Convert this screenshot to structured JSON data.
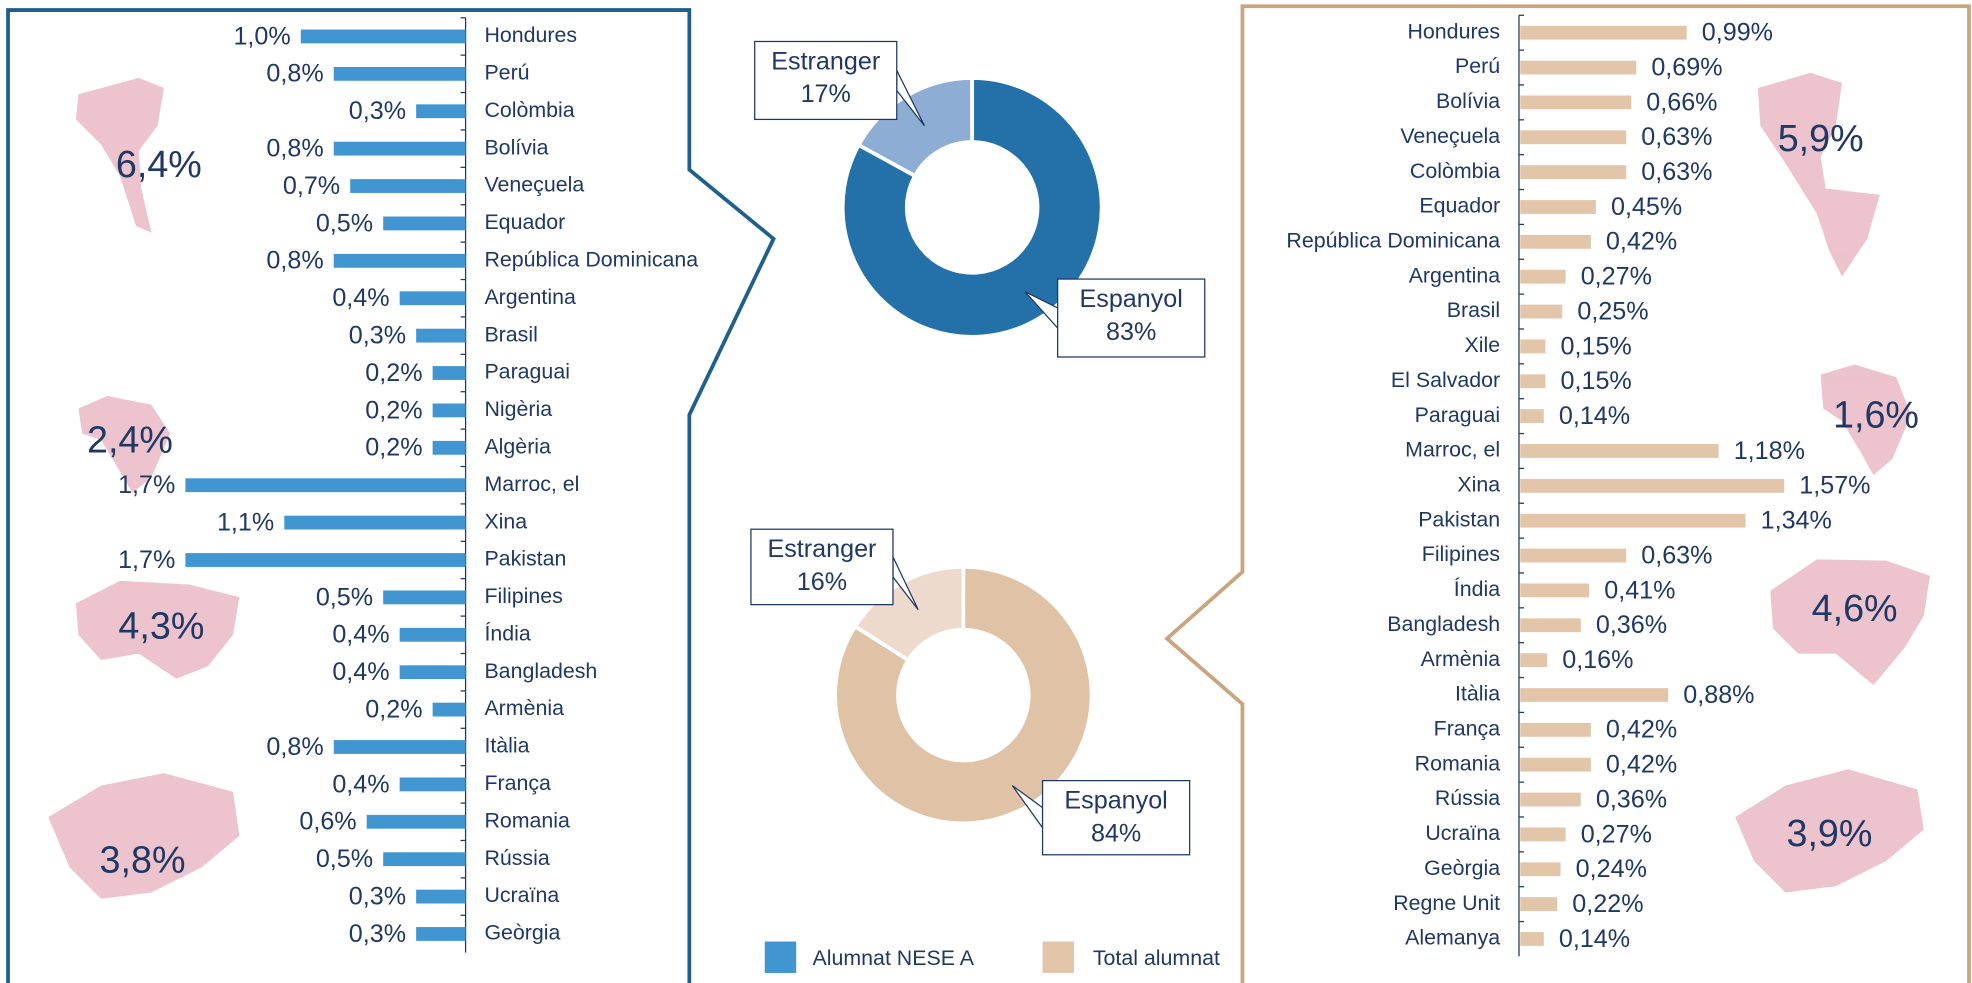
{
  "chart_data": [
    {
      "type": "bar",
      "orientation": "horizontal",
      "color": "#4196d2",
      "xlim": [
        0,
        1.8
      ],
      "categories": [
        "Hondures",
        "Perú",
        "Colòmbia",
        "Bolívia",
        "Veneçuela",
        "Equador",
        "República Dominicana",
        "Argentina",
        "Brasil",
        "Paraguai",
        "Nigèria",
        "Algèria",
        "Marroc, el",
        "Xina",
        "Pakistan",
        "Filipines",
        "Índia",
        "Bangladesh",
        "Armènia",
        "Itàlia",
        "França",
        "Romania",
        "Rússia",
        "Ucraïna",
        "Geòrgia"
      ],
      "values": [
        1.0,
        0.8,
        0.3,
        0.8,
        0.7,
        0.5,
        0.8,
        0.4,
        0.3,
        0.2,
        0.2,
        0.2,
        1.7,
        1.1,
        1.7,
        0.5,
        0.4,
        0.4,
        0.2,
        0.8,
        0.4,
        0.6,
        0.5,
        0.3,
        0.3
      ],
      "value_labels": [
        "1,0%",
        "0,8%",
        "0,3%",
        "0,8%",
        "0,7%",
        "0,5%",
        "0,8%",
        "0,4%",
        "0,3%",
        "0,2%",
        "0,2%",
        "0,2%",
        "1,7%",
        "1,1%",
        "1,7%",
        "0,5%",
        "0,4%",
        "0,4%",
        "0,2%",
        "0,8%",
        "0,4%",
        "0,6%",
        "0,5%",
        "0,3%",
        "0,3%"
      ],
      "annotations": [
        "6,4%",
        "2,4%",
        "4,3%",
        "3,8%"
      ]
    },
    {
      "type": "donut",
      "categories": [
        "Estranger",
        "Espanyol"
      ],
      "values": [
        17,
        83
      ],
      "value_labels": [
        "17%",
        "83%"
      ],
      "colors": [
        "#8dadd5",
        "#2471aa"
      ]
    },
    {
      "type": "donut",
      "categories": [
        "Estranger",
        "Espanyol"
      ],
      "values": [
        16,
        84
      ],
      "value_labels": [
        "16%",
        "84%"
      ],
      "colors": [
        "#eddacd",
        "#e0c3a6"
      ]
    },
    {
      "type": "bar",
      "orientation": "horizontal",
      "color": "#e3c6aa",
      "xlim": [
        0,
        1.6
      ],
      "categories": [
        "Hondures",
        "Perú",
        "Bolívia",
        "Veneçuela",
        "Colòmbia",
        "Equador",
        "República Dominicana",
        "Argentina",
        "Brasil",
        "Xile",
        "El Salvador",
        "Paraguai",
        "Marroc, el",
        "Xina",
        "Pakistan",
        "Filipines",
        "Índia",
        "Bangladesh",
        "Armènia",
        "Itàlia",
        "França",
        "Romania",
        "Rússia",
        "Ucraïna",
        "Geòrgia",
        "Regne Unit",
        "Alemanya"
      ],
      "values": [
        0.99,
        0.69,
        0.66,
        0.63,
        0.63,
        0.45,
        0.42,
        0.27,
        0.25,
        0.15,
        0.15,
        0.14,
        1.18,
        1.57,
        1.34,
        0.63,
        0.41,
        0.36,
        0.16,
        0.88,
        0.42,
        0.42,
        0.36,
        0.27,
        0.24,
        0.22,
        0.14
      ],
      "value_labels": [
        "0,99%",
        "0,69%",
        "0,66%",
        "0,63%",
        "0,63%",
        "0,45%",
        "0,42%",
        "0,27%",
        "0,25%",
        "0,15%",
        "0,15%",
        "0,14%",
        "1,18%",
        "1,57%",
        "1,34%",
        "0,63%",
        "0,41%",
        "0,36%",
        "0,16%",
        "0,88%",
        "0,42%",
        "0,42%",
        "0,36%",
        "0,27%",
        "0,24%",
        "0,22%",
        "0,14%"
      ],
      "annotations": [
        "5,9%",
        "1,6%",
        "4,6%",
        "3,9%"
      ]
    }
  ],
  "legend": [
    {
      "name": "Alumnat NESE A",
      "color": "#4196d2"
    },
    {
      "name": "Total alumnat",
      "color": "#e3c6aa"
    }
  ]
}
